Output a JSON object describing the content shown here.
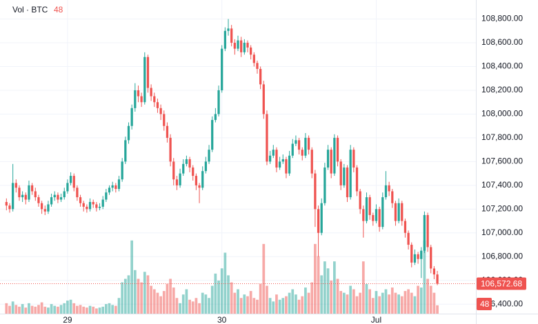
{
  "chart_data": {
    "type": "candlestick",
    "legend_label": "Vol · BTC",
    "volume_label": "48",
    "last_label": "106,572.68",
    "up_color": "#26a69a",
    "down_color": "#ef5350",
    "ylim": [
      106320,
      108960
    ],
    "volume_ylim": [
      0,
      1800
    ],
    "xlim": [
      -2,
      146
    ],
    "yticks": [
      {
        "value": 106400,
        "label": "106,400.00"
      },
      {
        "value": 106600,
        "label": "106,600.00"
      },
      {
        "value": 106800,
        "label": "106,800.00"
      },
      {
        "value": 107000,
        "label": "107,000.00"
      },
      {
        "value": 107200,
        "label": "107,200.00"
      },
      {
        "value": 107400,
        "label": "107,400.00"
      },
      {
        "value": 107600,
        "label": "107,600.00"
      },
      {
        "value": 107800,
        "label": "107,800.00"
      },
      {
        "value": 108000,
        "label": "108,000.00"
      },
      {
        "value": 108200,
        "label": "108,200.00"
      },
      {
        "value": 108400,
        "label": "108,400.00"
      },
      {
        "value": 108600,
        "label": "108,600.00"
      },
      {
        "value": 108800,
        "label": "108,800.00"
      }
    ],
    "xticks": [
      {
        "value": 19,
        "label": "29"
      },
      {
        "value": 67,
        "label": "30"
      },
      {
        "value": 115,
        "label": "Jul"
      }
    ],
    "grid": true,
    "candles": [
      [
        107260,
        107290,
        107190,
        107230
      ],
      [
        107230,
        107250,
        107170,
        107200
      ],
      [
        107200,
        107580,
        107180,
        107420
      ],
      [
        107420,
        107450,
        107340,
        107380
      ],
      [
        107380,
        107400,
        107270,
        107300
      ],
      [
        107300,
        107350,
        107260,
        107320
      ],
      [
        107320,
        107340,
        107240,
        107280
      ],
      [
        107280,
        107440,
        107260,
        107400
      ],
      [
        107400,
        107420,
        107320,
        107350
      ],
      [
        107350,
        107380,
        107270,
        107300
      ],
      [
        107300,
        107320,
        107220,
        107250
      ],
      [
        107250,
        107270,
        107160,
        107200
      ],
      [
        107200,
        107230,
        107150,
        107180
      ],
      [
        107180,
        107270,
        107160,
        107240
      ],
      [
        107240,
        107330,
        107220,
        107300
      ],
      [
        107300,
        107350,
        107270,
        107320
      ],
      [
        107320,
        107340,
        107250,
        107280
      ],
      [
        107280,
        107330,
        107260,
        107300
      ],
      [
        107300,
        107380,
        107280,
        107350
      ],
      [
        107350,
        107450,
        107330,
        107420
      ],
      [
        107420,
        107510,
        107400,
        107480
      ],
      [
        107480,
        107500,
        107350,
        107380
      ],
      [
        107380,
        107400,
        107270,
        107300
      ],
      [
        107300,
        107320,
        107220,
        107250
      ],
      [
        107250,
        107270,
        107180,
        107220
      ],
      [
        107220,
        107240,
        107170,
        107200
      ],
      [
        107200,
        107290,
        107180,
        107260
      ],
      [
        107260,
        107280,
        107210,
        107240
      ],
      [
        107240,
        107260,
        107180,
        107210
      ],
      [
        107210,
        107250,
        107190,
        107220
      ],
      [
        107220,
        107310,
        107200,
        107280
      ],
      [
        107280,
        107370,
        107260,
        107340
      ],
      [
        107340,
        107400,
        107320,
        107380
      ],
      [
        107380,
        107430,
        107350,
        107400
      ],
      [
        107400,
        107420,
        107340,
        107370
      ],
      [
        107370,
        107480,
        107350,
        107450
      ],
      [
        107450,
        107630,
        107430,
        107600
      ],
      [
        107600,
        107810,
        107580,
        107780
      ],
      [
        107780,
        107930,
        107750,
        107900
      ],
      [
        107900,
        108080,
        107870,
        108050
      ],
      [
        108050,
        108260,
        108020,
        108200
      ],
      [
        108200,
        108240,
        108100,
        108150
      ],
      [
        108150,
        108180,
        108060,
        108100
      ],
      [
        108100,
        108520,
        108080,
        108480
      ],
      [
        108480,
        108500,
        108180,
        108220
      ],
      [
        108220,
        108250,
        108110,
        108150
      ],
      [
        108150,
        108180,
        108060,
        108100
      ],
      [
        108100,
        108130,
        108010,
        108050
      ],
      [
        108050,
        108080,
        107950,
        108000
      ],
      [
        108000,
        108030,
        107860,
        107900
      ],
      [
        107900,
        107930,
        107760,
        107800
      ],
      [
        107800,
        107830,
        107560,
        107600
      ],
      [
        107600,
        107630,
        107400,
        107450
      ],
      [
        107450,
        107480,
        107360,
        107400
      ],
      [
        107400,
        107540,
        107380,
        107500
      ],
      [
        107500,
        107620,
        107480,
        107580
      ],
      [
        107580,
        107650,
        107560,
        107620
      ],
      [
        107620,
        107640,
        107510,
        107550
      ],
      [
        107550,
        107570,
        107440,
        107480
      ],
      [
        107480,
        107500,
        107360,
        107400
      ],
      [
        107400,
        107420,
        107250,
        107380
      ],
      [
        107380,
        107560,
        107360,
        107520
      ],
      [
        107520,
        107640,
        107500,
        107600
      ],
      [
        107600,
        107740,
        107580,
        107700
      ],
      [
        107700,
        107980,
        107680,
        107950
      ],
      [
        107950,
        108050,
        107930,
        108000
      ],
      [
        108000,
        108240,
        107980,
        108200
      ],
      [
        108200,
        108580,
        108180,
        108550
      ],
      [
        108550,
        108730,
        108530,
        108700
      ],
      [
        108700,
        108800,
        108660,
        108720
      ],
      [
        108720,
        108750,
        108570,
        108600
      ],
      [
        108600,
        108630,
        108500,
        108550
      ],
      [
        108550,
        108660,
        108530,
        108620
      ],
      [
        108620,
        108650,
        108480,
        108520
      ],
      [
        108520,
        108630,
        108500,
        108600
      ],
      [
        108600,
        108620,
        108520,
        108560
      ],
      [
        108560,
        108580,
        108460,
        108500
      ],
      [
        108500,
        108520,
        108400,
        108430
      ],
      [
        108430,
        108450,
        108340,
        108380
      ],
      [
        108380,
        108400,
        108210,
        108250
      ],
      [
        108250,
        108280,
        107960,
        108000
      ],
      [
        108000,
        108030,
        107570,
        107600
      ],
      [
        107600,
        107690,
        107580,
        107650
      ],
      [
        107650,
        107740,
        107630,
        107700
      ],
      [
        107700,
        107720,
        107510,
        107550
      ],
      [
        107550,
        107640,
        107530,
        107600
      ],
      [
        107600,
        107660,
        107580,
        107620
      ],
      [
        107620,
        107640,
        107460,
        107500
      ],
      [
        107500,
        107690,
        107480,
        107650
      ],
      [
        107650,
        107790,
        107630,
        107750
      ],
      [
        107750,
        107820,
        107730,
        107780
      ],
      [
        107780,
        107800,
        107660,
        107700
      ],
      [
        107700,
        107720,
        107610,
        107650
      ],
      [
        107650,
        107840,
        107630,
        107800
      ],
      [
        107800,
        107820,
        107660,
        107700
      ],
      [
        107700,
        107720,
        107460,
        107500
      ],
      [
        107500,
        107530,
        107050,
        107200
      ],
      [
        107200,
        107230,
        106800,
        107000
      ],
      [
        107000,
        107290,
        106980,
        107250
      ],
      [
        107250,
        107590,
        107230,
        107550
      ],
      [
        107550,
        107740,
        107530,
        107700
      ],
      [
        107700,
        107720,
        107460,
        107500
      ],
      [
        107500,
        107830,
        107480,
        107800
      ],
      [
        107800,
        107820,
        107560,
        107600
      ],
      [
        107600,
        107620,
        107360,
        107400
      ],
      [
        107400,
        107580,
        107380,
        107550
      ],
      [
        107550,
        107570,
        107260,
        107300
      ],
      [
        107300,
        107740,
        107280,
        107700
      ],
      [
        107700,
        107720,
        107510,
        107550
      ],
      [
        107550,
        107570,
        107310,
        107350
      ],
      [
        107350,
        107370,
        107160,
        107200
      ],
      [
        107200,
        107230,
        106960,
        107100
      ],
      [
        107100,
        107340,
        107080,
        107300
      ],
      [
        107300,
        107320,
        107110,
        107150
      ],
      [
        107150,
        107170,
        107060,
        107100
      ],
      [
        107100,
        107240,
        107080,
        107200
      ],
      [
        107200,
        107220,
        107010,
        107050
      ],
      [
        107050,
        107340,
        107030,
        107300
      ],
      [
        107300,
        107520,
        107280,
        107400
      ],
      [
        107400,
        107430,
        107310,
        107350
      ],
      [
        107350,
        107370,
        107210,
        107250
      ],
      [
        107250,
        107270,
        107060,
        107100
      ],
      [
        107100,
        107290,
        107080,
        107250
      ],
      [
        107250,
        107270,
        107060,
        107100
      ],
      [
        107100,
        107120,
        106960,
        107000
      ],
      [
        107000,
        107020,
        106860,
        106900
      ],
      [
        106900,
        106920,
        106710,
        106750
      ],
      [
        106750,
        106860,
        106730,
        106820
      ],
      [
        106820,
        106840,
        106740,
        106780
      ],
      [
        106780,
        106880,
        106620,
        106850
      ],
      [
        106850,
        107180,
        106830,
        107150
      ],
      [
        107150,
        107170,
        106840,
        106880
      ],
      [
        106880,
        106900,
        106660,
        106700
      ],
      [
        106700,
        106720,
        106610,
        106650
      ],
      [
        106650,
        106680,
        106560,
        106572.68
      ]
    ],
    "volumes": [
      60,
      45,
      70,
      50,
      40,
      55,
      35,
      60,
      45,
      40,
      50,
      65,
      40,
      35,
      55,
      45,
      40,
      50,
      60,
      75,
      80,
      60,
      45,
      50,
      40,
      35,
      45,
      40,
      30,
      35,
      40,
      55,
      60,
      50,
      45,
      90,
      180,
      200,
      220,
      420,
      250,
      200,
      180,
      240,
      220,
      160,
      140,
      120,
      100,
      130,
      170,
      200,
      150,
      90,
      60,
      110,
      140,
      80,
      70,
      90,
      60,
      120,
      110,
      90,
      160,
      230,
      190,
      260,
      350,
      220,
      180,
      120,
      140,
      90,
      110,
      100,
      130,
      90,
      80,
      170,
      400,
      160,
      90,
      70,
      110,
      80,
      90,
      100,
      120,
      140,
      110,
      80,
      100,
      150,
      120,
      180,
      400,
      330,
      220,
      300,
      260,
      190,
      300,
      200,
      130,
      120,
      110,
      160,
      140,
      100,
      120,
      300,
      170,
      140,
      90,
      130,
      100,
      120,
      140,
      110,
      150,
      120,
      110,
      100,
      130,
      140,
      120,
      100,
      160,
      150,
      420,
      200,
      160,
      120,
      48
    ]
  }
}
